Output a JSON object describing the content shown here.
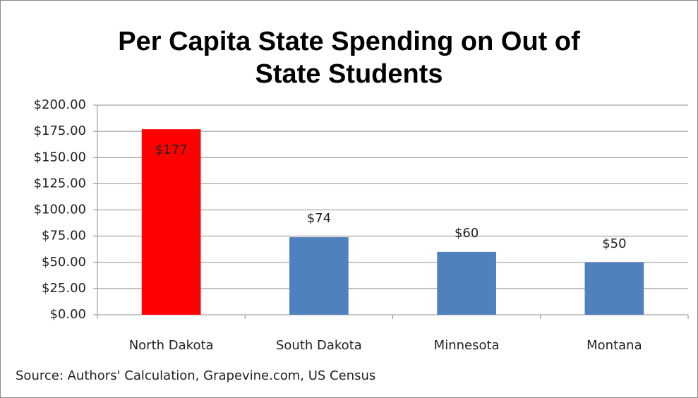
{
  "chart_data": {
    "type": "bar",
    "title": "Per Capita State Spending on Out of\nState Students",
    "categories": [
      "North Dakota",
      "South Dakota",
      "Minnesota",
      "Montana"
    ],
    "values": [
      177,
      74,
      60,
      50
    ],
    "value_labels": [
      "$177",
      "$74",
      "$60",
      "$50"
    ],
    "colors": [
      "#ff0000",
      "#4f81bd",
      "#4f81bd",
      "#4f81bd"
    ],
    "ylim": [
      0,
      200
    ],
    "yticks": [
      {
        "value": 0,
        "label": "$0.00"
      },
      {
        "value": 25,
        "label": "$25.00"
      },
      {
        "value": 50,
        "label": "$50.00"
      },
      {
        "value": 75,
        "label": "$75.00"
      },
      {
        "value": 100,
        "label": "$100.00"
      },
      {
        "value": 125,
        "label": "$125.00"
      },
      {
        "value": 150,
        "label": "$150.00"
      },
      {
        "value": 175,
        "label": "$175.00"
      },
      {
        "value": 200,
        "label": "$200.00"
      }
    ],
    "grid": true,
    "source": "Source: Authors' Calculation, Grapevine.com, US Census"
  }
}
